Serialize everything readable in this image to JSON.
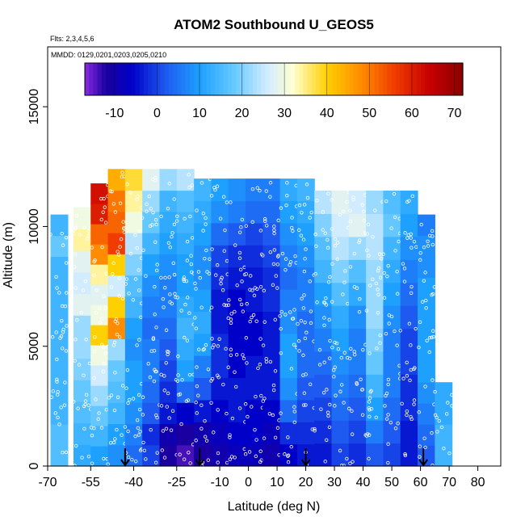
{
  "chart_data": {
    "type": "heatmap",
    "title": "ATOM2 Southbound U_GEOS5",
    "subtitle_flights": "Flts: 2,3,4,5,6",
    "subtitle_dates": "MMDD: 0129,0201,0203,0205,0210",
    "xlabel": "Latitude (deg N)",
    "ylabel": "Altitude (m)",
    "xlim": [
      -70,
      88
    ],
    "ylim": [
      0,
      17500
    ],
    "x_ticks": [
      -70,
      -55,
      -40,
      -25,
      -10,
      0,
      10,
      20,
      30,
      40,
      50,
      60,
      70,
      80
    ],
    "y_ticks": [
      0,
      5000,
      10000,
      15000
    ],
    "colorbar": {
      "min": -17,
      "max": 72,
      "ticks": [
        -10,
        0,
        10,
        20,
        30,
        40,
        50,
        60,
        70
      ],
      "stops": [
        {
          "v": -17,
          "c": "#8a2be2"
        },
        {
          "v": -12,
          "c": "#1a00a0"
        },
        {
          "v": -6,
          "c": "#0000c8"
        },
        {
          "v": 2,
          "c": "#1e5af0"
        },
        {
          "v": 10,
          "c": "#1ea0ff"
        },
        {
          "v": 18,
          "c": "#64c8ff"
        },
        {
          "v": 26,
          "c": "#d2ecff"
        },
        {
          "v": 32,
          "c": "#ffffd2"
        },
        {
          "v": 40,
          "c": "#ffd000"
        },
        {
          "v": 48,
          "c": "#ff8c00"
        },
        {
          "v": 56,
          "c": "#f03c00"
        },
        {
          "v": 64,
          "c": "#c80000"
        },
        {
          "v": 72,
          "c": "#8b0000"
        }
      ]
    },
    "lat_grid": [
      -66,
      -58,
      -52,
      -46,
      -40,
      -34,
      -28,
      -22,
      -16,
      -10,
      -4,
      2,
      8,
      14,
      20,
      26,
      32,
      38,
      44,
      50,
      56,
      62,
      68
    ],
    "columns": [
      {
        "lat": -66,
        "top": 10500,
        "u": [
          16,
          16,
          14,
          14,
          14,
          14,
          14,
          14,
          14,
          14,
          18,
          14
        ]
      },
      {
        "lat": -58,
        "top": 10800,
        "u": [
          12,
          14,
          16,
          18,
          20,
          22,
          22,
          28,
          26,
          28,
          34,
          30
        ]
      },
      {
        "lat": -52,
        "top": 11800,
        "u": [
          10,
          14,
          18,
          22,
          26,
          30,
          40,
          30,
          28,
          34,
          48,
          52,
          60,
          62
        ]
      },
      {
        "lat": -46,
        "top": 12400,
        "u": [
          8,
          10,
          14,
          16,
          18,
          22,
          48,
          40,
          26,
          40,
          56,
          52,
          50,
          44
        ]
      },
      {
        "lat": -40,
        "top": 12400,
        "u": [
          4,
          6,
          8,
          10,
          10,
          8,
          10,
          14,
          16,
          20,
          24,
          30,
          34,
          38
        ]
      },
      {
        "lat": -34,
        "top": 12400,
        "u": [
          0,
          -2,
          2,
          4,
          6,
          6,
          4,
          6,
          8,
          10,
          14,
          18,
          22,
          28
        ]
      },
      {
        "lat": -28,
        "top": 12400,
        "u": [
          -12,
          -10,
          -4,
          -2,
          0,
          2,
          4,
          6,
          6,
          8,
          10,
          12,
          14,
          22
        ]
      },
      {
        "lat": -22,
        "top": 12400,
        "u": [
          -14,
          -12,
          -6,
          4,
          10,
          12,
          14,
          12,
          10,
          10,
          12,
          14,
          16,
          24
        ]
      },
      {
        "lat": -16,
        "top": 12000,
        "u": [
          -12,
          -10,
          -4,
          2,
          6,
          10,
          12,
          10,
          8,
          8,
          10,
          12,
          14
        ]
      },
      {
        "lat": -10,
        "top": 12000,
        "u": [
          -10,
          -8,
          -6,
          -4,
          -2,
          -2,
          -4,
          -4,
          -2,
          0,
          4,
          8,
          10
        ]
      },
      {
        "lat": -4,
        "top": 12000,
        "u": [
          -8,
          -6,
          -4,
          -4,
          -6,
          -6,
          -6,
          -6,
          -4,
          -2,
          2,
          6,
          8
        ]
      },
      {
        "lat": 2,
        "top": 12000,
        "u": [
          -8,
          -6,
          -6,
          -4,
          -4,
          -6,
          -6,
          -4,
          -4,
          -2,
          0,
          4,
          6
        ]
      },
      {
        "lat": 8,
        "top": 12000,
        "u": [
          -10,
          -8,
          -6,
          -4,
          -4,
          -4,
          -4,
          -2,
          -2,
          0,
          2,
          4,
          6
        ]
      },
      {
        "lat": 14,
        "top": 12000,
        "u": [
          -6,
          -2,
          4,
          8,
          10,
          10,
          8,
          6,
          4,
          6,
          8,
          10,
          12
        ]
      },
      {
        "lat": 20,
        "top": 12000,
        "u": [
          -4,
          -2,
          0,
          2,
          4,
          4,
          4,
          6,
          6,
          8,
          10,
          12,
          14
        ]
      },
      {
        "lat": 26,
        "top": 11500,
        "u": [
          -4,
          -2,
          0,
          2,
          4,
          6,
          8,
          10,
          14,
          16,
          20,
          24
        ]
      },
      {
        "lat": 32,
        "top": 11500,
        "u": [
          0,
          2,
          4,
          6,
          8,
          10,
          12,
          16,
          20,
          24,
          26,
          28
        ]
      },
      {
        "lat": 38,
        "top": 11500,
        "u": [
          -2,
          0,
          2,
          4,
          6,
          6,
          8,
          12,
          16,
          22,
          28,
          26
        ]
      },
      {
        "lat": 44,
        "top": 11500,
        "u": [
          2,
          6,
          10,
          14,
          18,
          20,
          22,
          22,
          22,
          24,
          24,
          22
        ]
      },
      {
        "lat": 50,
        "top": 11500,
        "u": [
          0,
          2,
          4,
          6,
          6,
          6,
          8,
          10,
          12,
          14,
          18,
          16
        ]
      },
      {
        "lat": 56,
        "top": 11500,
        "u": [
          -4,
          -4,
          -2,
          -2,
          0,
          0,
          2,
          4,
          6,
          8,
          10,
          12
        ]
      },
      {
        "lat": 62,
        "top": 10500,
        "u": [
          2,
          4,
          6,
          8,
          10,
          10,
          10,
          10,
          10,
          8,
          8,
          6
        ]
      },
      {
        "lat": 68,
        "top": 3500,
        "u": [
          14,
          14,
          12,
          12
        ]
      }
    ],
    "arrows_lat": [
      -43,
      -17,
      20,
      61
    ],
    "colors": {
      "arrow": "#000000",
      "markers": "#ffffff"
    }
  }
}
